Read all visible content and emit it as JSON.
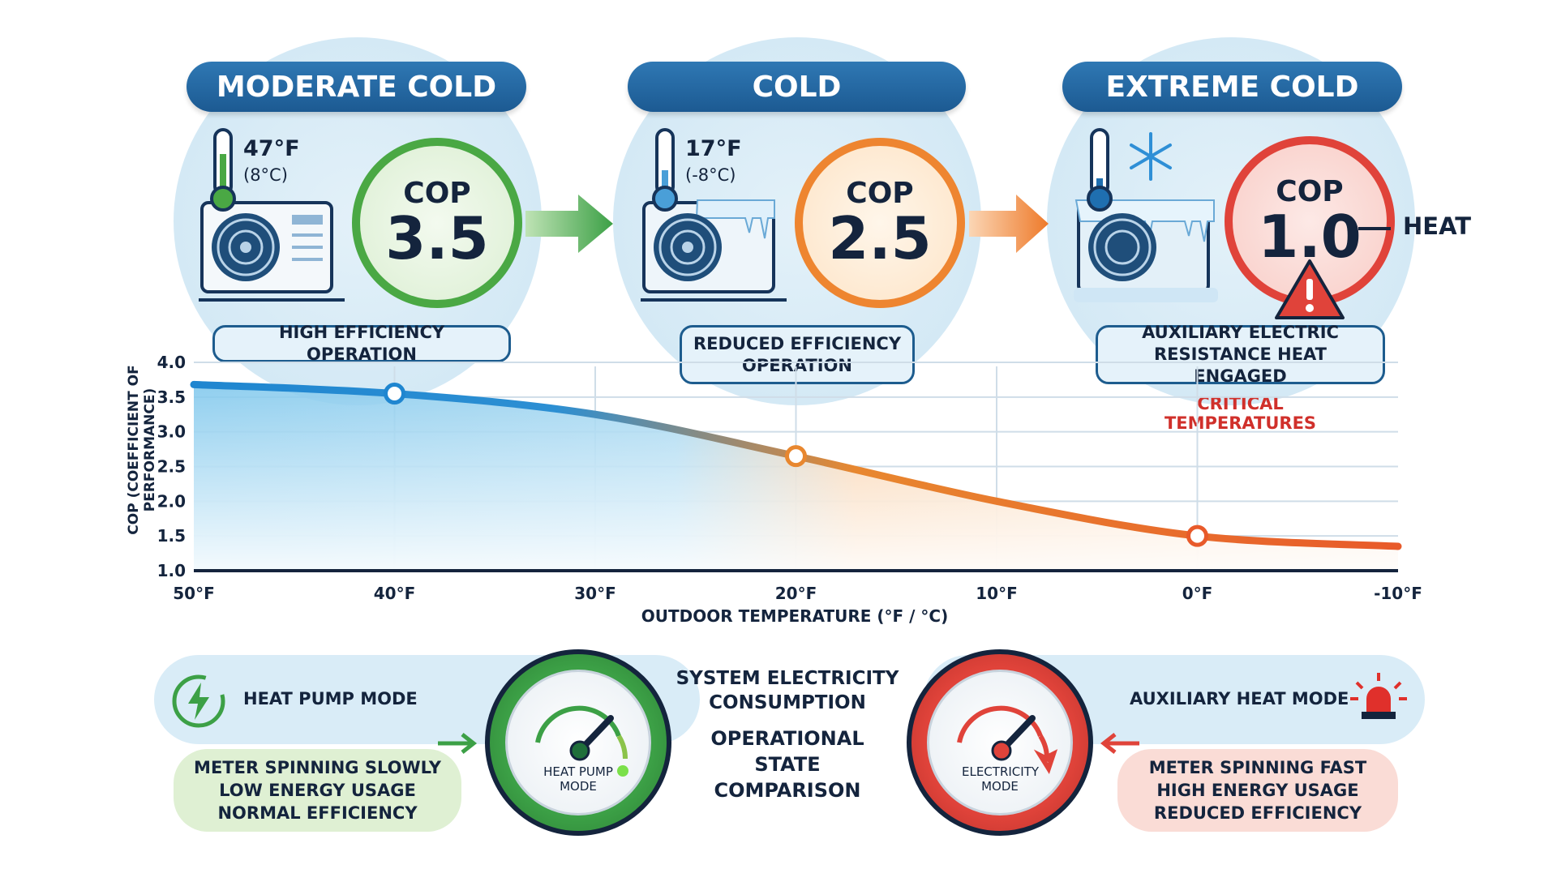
{
  "stages": [
    {
      "title": "MODERATE COLD",
      "temp_f": "47°F",
      "temp_c": "(8°C)",
      "cop_label": "COP",
      "cop_value": "3.5",
      "status": "HIGH EFFICIENCY OPERATION",
      "color": "#4aa844"
    },
    {
      "title": "COLD",
      "temp_f": "17°F",
      "temp_c": "(-8°C)",
      "cop_label": "COP",
      "cop_value": "2.5",
      "status": "REDUCED EFFICIENCY OPERATION",
      "color": "#ee8530"
    },
    {
      "title": "EXTREME COLD",
      "cop_label": "COP",
      "cop_value": "1.0",
      "heat_label": "HEAT",
      "status": "AUXILIARY ELECTRIC RESISTANCE HEAT ENGAGED",
      "note": "CRITICAL TEMPERATURES",
      "color": "#e0433a"
    }
  ],
  "chart_data": {
    "type": "line",
    "xlabel": "OUTDOOR TEMPERATURE (°F / °C)",
    "ylabel": "COP (COEFFICIENT OF PERFORMANCE)",
    "x": [
      50,
      40,
      30,
      20,
      10,
      0,
      -10
    ],
    "x_tick_labels": [
      "50°F",
      "40°F",
      "30°F",
      "20°F",
      "10°F",
      "0°F",
      "-10°F"
    ],
    "y": [
      3.68,
      3.55,
      3.25,
      2.65,
      2.0,
      1.5,
      1.35
    ],
    "markers_at": [
      40,
      20,
      0
    ],
    "y_ticks": [
      "1.0",
      "1.5",
      "2.0",
      "2.5",
      "3.0",
      "3.5",
      "4.0"
    ],
    "ylim": [
      1.0,
      4.0
    ],
    "xlim": [
      50,
      -10
    ],
    "grid": true,
    "colors": {
      "warm": "#1f86d0",
      "cold": "#e85a2a"
    }
  },
  "bottom": {
    "left_mode": "HEAT PUMP MODE",
    "left_desc": [
      "METER SPINNING SLOWLY",
      "LOW ENERGY USAGE",
      "NORMAL EFFICIENCY"
    ],
    "left_gauge": "HEAT PUMP MODE",
    "center_title": "SYSTEM ELECTRICITY CONSUMPTION",
    "center_sub": "OPERATIONAL STATE COMPARISON",
    "right_mode": "AUXILIARY HEAT MODE",
    "right_desc": [
      "METER SPINNING FAST",
      "HIGH ENERGY USAGE",
      "REDUCED EFFICIENCY"
    ],
    "right_gauge": "ELECTRICITY MODE"
  }
}
